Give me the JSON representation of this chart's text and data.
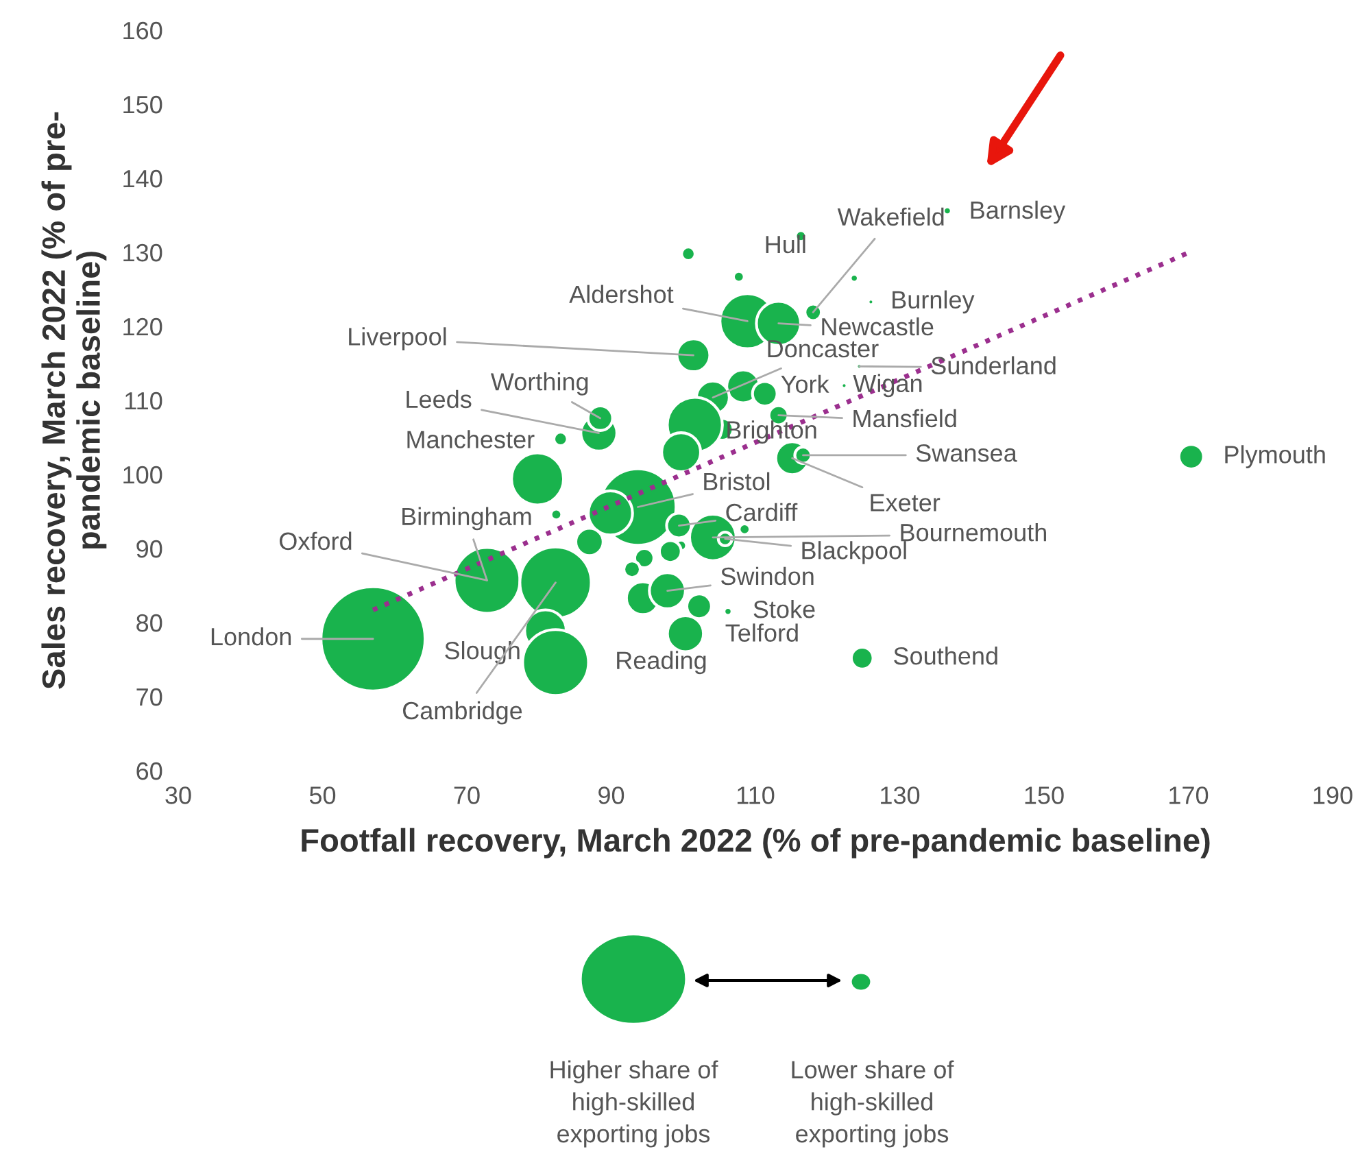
{
  "chart_data": {
    "type": "bubble",
    "xlabel": "Footfall recovery, March 2022 (% of pre-pandemic baseline)",
    "ylabel": "Sales recovery, March 2022 (% of pre-\npandemic baseline)",
    "xlim": [
      30,
      190
    ],
    "xticks": [
      30,
      50,
      70,
      90,
      110,
      130,
      150,
      170,
      190
    ],
    "ylim": [
      60,
      160
    ],
    "yticks": [
      60,
      70,
      80,
      90,
      100,
      110,
      120,
      130,
      140,
      150,
      160
    ],
    "grid": false,
    "series": [
      {
        "color": "#19b34d",
        "x": [
          57.0,
          72.8,
          82.3,
          80.9,
          82.3,
          79.8,
          82.4,
          83.0,
          88.3,
          88.5,
          93.7,
          89.9,
          87.0,
          101.4,
          108.9,
          113.2,
          108.3,
          104.1,
          111.3,
          113.2,
          105.4,
          101.6,
          99.7,
          115.1,
          116.6,
          170.4,
          124.8,
          99.4,
          104.1,
          105.8,
          108.5,
          99.7,
          98.2,
          94.4,
          97.8,
          94.6,
          92.9,
          102.2,
          106.2,
          100.3,
          136.6,
          100.7,
          116.3,
          107.7,
          118.0,
          123.7,
          126.0,
          124.4,
          122.3
        ],
        "values": [
          77.8,
          85.7,
          85.4,
          78.9,
          74.6,
          99.4,
          94.6,
          104.8,
          105.6,
          107.6,
          95.6,
          94.8,
          90.9,
          116.1,
          120.7,
          120.4,
          111.9,
          110.4,
          110.9,
          108.0,
          106.1,
          106.7,
          103.0,
          102.2,
          102.6,
          102.4,
          75.2,
          93.1,
          91.5,
          91.3,
          92.6,
          90.4,
          89.6,
          83.3,
          84.3,
          88.7,
          87.2,
          82.2,
          81.5,
          78.5,
          135.6,
          129.8,
          132.2,
          126.7,
          121.9,
          126.5,
          123.3,
          114.6,
          112.0
        ],
        "sizes": [
          1,
          0.4,
          0.47,
          0.16,
          0.4,
          0.25,
          0.011,
          0.017,
          0.12,
          0.056,
          0.54,
          0.18,
          0.069,
          0.1,
          0.28,
          0.18,
          0.1,
          0.1,
          0.056,
          0.034,
          0.044,
          0.28,
          0.14,
          0.1,
          0.025,
          0.056,
          0.044,
          0.056,
          0.2,
          0.017,
          0.011,
          0.011,
          0.044,
          0.1,
          0.12,
          0.034,
          0.025,
          0.056,
          0.006,
          0.12,
          0.006,
          0.017,
          0.011,
          0.011,
          0.025,
          0.006,
          0.003,
          0.003,
          0.003
        ]
      },
      {
        "type": "line",
        "color": "#9b2f8e",
        "line_style": "dotted",
        "x": [
          57.0,
          170.6
        ],
        "values": [
          81.7,
          130.2
        ]
      }
    ],
    "annotations": [
      {
        "text": "London",
        "x": 57.0,
        "y": 77.8
      },
      {
        "text": "Oxford",
        "x": 72.8,
        "y": 85.7
      },
      {
        "text": "Birmingham",
        "x": 72.8,
        "y": 85.7
      },
      {
        "text": "Slough",
        "x": 80.9,
        "y": 78.9
      },
      {
        "text": "Cambridge",
        "x": 82.3,
        "y": 85.4
      },
      {
        "text": "Reading",
        "x": 82.3,
        "y": 74.6
      },
      {
        "text": "Manchester",
        "x": 83.0,
        "y": 104.8
      },
      {
        "text": "Leeds",
        "x": 88.3,
        "y": 105.6
      },
      {
        "text": "Worthing",
        "x": 88.5,
        "y": 107.6
      },
      {
        "text": "Liverpool",
        "x": 101.4,
        "y": 116.1
      },
      {
        "text": "Aldershot",
        "x": 108.9,
        "y": 120.7
      },
      {
        "text": "Hull",
        "x": 107.7,
        "y": 126.7
      },
      {
        "text": "Wakefield",
        "x": 118.0,
        "y": 121.9
      },
      {
        "text": "Burnley",
        "x": 126.0,
        "y": 123.3
      },
      {
        "text": "Newcastle",
        "x": 113.2,
        "y": 120.4
      },
      {
        "text": "Doncaster",
        "x": 104.1,
        "y": 110.4
      },
      {
        "text": "Sunderland",
        "x": 124.4,
        "y": 114.6
      },
      {
        "text": "Wigan",
        "x": 122.3,
        "y": 112.0
      },
      {
        "text": "York",
        "x": 108.3,
        "y": 111.9
      },
      {
        "text": "Mansfield",
        "x": 113.2,
        "y": 108.0
      },
      {
        "text": "Brighton",
        "x": 105.4,
        "y": 106.1
      },
      {
        "text": "Swansea",
        "x": 116.6,
        "y": 102.6
      },
      {
        "text": "Exeter",
        "x": 115.1,
        "y": 102.2
      },
      {
        "text": "Bristol",
        "x": 93.7,
        "y": 95.6
      },
      {
        "text": "Cardiff",
        "x": 99.4,
        "y": 93.1
      },
      {
        "text": "Bournemouth",
        "x": 104.1,
        "y": 91.5
      },
      {
        "text": "Blackpool",
        "x": 105.8,
        "y": 91.3
      },
      {
        "text": "Swindon",
        "x": 97.8,
        "y": 84.3
      },
      {
        "text": "Stoke",
        "x": 106.2,
        "y": 81.5
      },
      {
        "text": "Telford",
        "x": 102.2,
        "y": 82.2
      },
      {
        "text": "Southend",
        "x": 124.8,
        "y": 75.2
      },
      {
        "text": "Plymouth",
        "x": 170.4,
        "y": 102.4
      },
      {
        "text": "Barnsley",
        "x": 136.6,
        "y": 135.6
      },
      "Higher share of\nhigh-skilled\nexporting jobs",
      "Lower share of\nhigh-skilled\nexporting jobs"
    ]
  }
}
